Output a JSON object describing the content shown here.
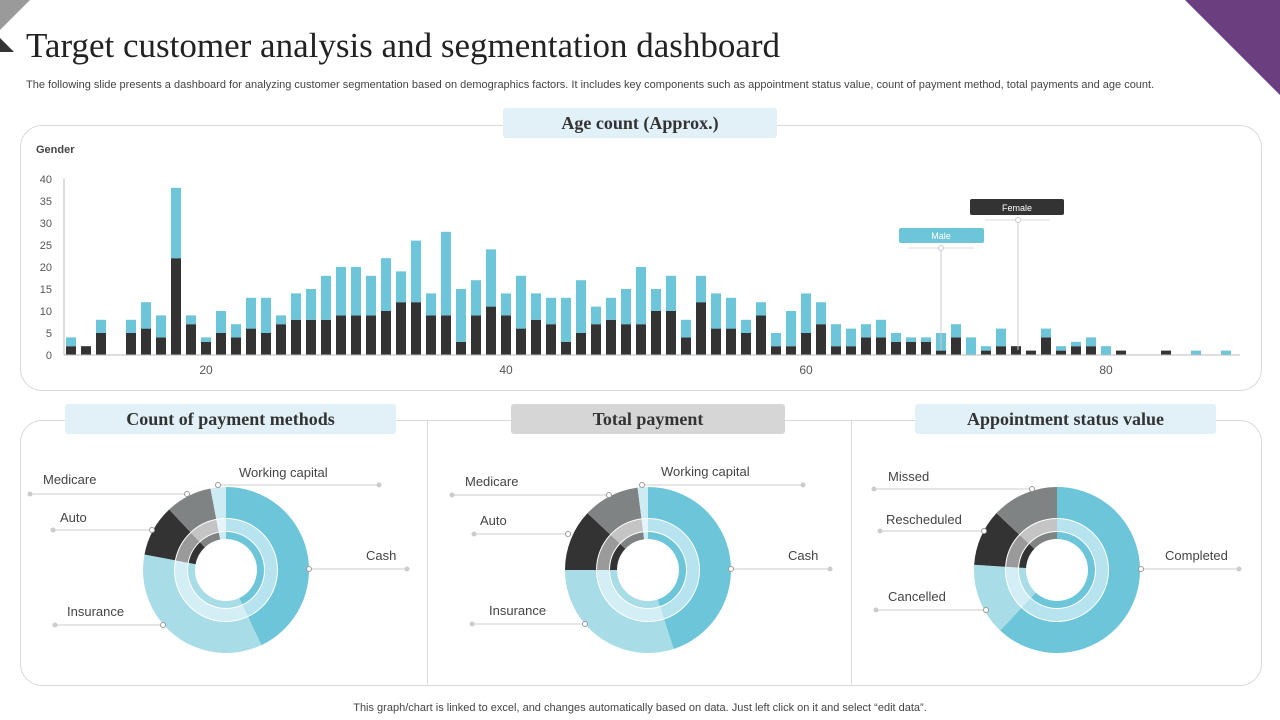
{
  "header": {
    "title": "Target customer analysis and segmentation dashboard",
    "subtitle": "The following slide presents a dashboard for analyzing customer segmentation based on demographics factors. It includes key components such as appointment status value, count of payment method, total payments and age count."
  },
  "footer": "This graph/chart is linked to excel, and changes automatically based on data. Just left click on it and select “edit data”.",
  "colors": {
    "dark": "#333333",
    "blue": "#6cc5d8",
    "light_blue": "#a8dde8",
    "gray": "#808383",
    "pale": "#cdebf2",
    "accent_purple": "#6b3f7f"
  },
  "chart_data": [
    {
      "type": "bar",
      "stacked": true,
      "title": "Age count (Approx.)",
      "legend_title": "Gender",
      "ylim": [
        0,
        40
      ],
      "yticks": [
        "0",
        "5",
        "10",
        "15",
        "20",
        "25",
        "30",
        "35",
        "40"
      ],
      "xticks": [
        "20",
        "40",
        "60",
        "80"
      ],
      "grid": false,
      "x": [
        11,
        12,
        13,
        14,
        15,
        16,
        17,
        18,
        19,
        20,
        21,
        22,
        23,
        24,
        25,
        26,
        27,
        28,
        29,
        30,
        31,
        32,
        33,
        34,
        35,
        36,
        37,
        38,
        39,
        40,
        41,
        42,
        43,
        44,
        45,
        46,
        47,
        48,
        49,
        50,
        51,
        52,
        53,
        54,
        55,
        56,
        57,
        58,
        59,
        60,
        61,
        62,
        63,
        64,
        65,
        66,
        67,
        68,
        69,
        70,
        71,
        72,
        73,
        74,
        75,
        76,
        77,
        78,
        79,
        80,
        81,
        82,
        83,
        84,
        85,
        86,
        87,
        88
      ],
      "series": [
        {
          "name": "Female",
          "color": "#333333",
          "values": [
            2,
            2,
            5,
            0,
            5,
            6,
            4,
            22,
            7,
            3,
            5,
            4,
            6,
            5,
            7,
            8,
            8,
            8,
            9,
            9,
            9,
            10,
            12,
            12,
            9,
            9,
            3,
            9,
            11,
            9,
            6,
            8,
            7,
            3,
            5,
            7,
            8,
            7,
            7,
            10,
            10,
            4,
            12,
            6,
            6,
            5,
            9,
            2,
            2,
            5,
            7,
            2,
            2,
            4,
            4,
            3,
            3,
            3,
            1,
            4,
            0,
            1,
            2,
            2,
            1,
            4,
            1,
            2,
            2,
            0,
            1,
            0,
            0,
            1,
            0,
            0,
            0,
            0
          ]
        },
        {
          "name": "Male",
          "color": "#6cc5d8",
          "values": [
            2,
            0,
            3,
            0,
            3,
            6,
            5,
            16,
            2,
            1,
            5,
            3,
            7,
            8,
            2,
            6,
            7,
            10,
            11,
            11,
            9,
            12,
            7,
            14,
            5,
            19,
            12,
            8,
            13,
            5,
            12,
            6,
            6,
            10,
            12,
            4,
            5,
            8,
            13,
            5,
            8,
            4,
            6,
            8,
            7,
            3,
            3,
            3,
            8,
            9,
            5,
            5,
            4,
            3,
            4,
            2,
            1,
            1,
            4,
            3,
            4,
            1,
            4,
            0,
            0,
            2,
            1,
            1,
            2,
            2,
            0,
            0,
            0,
            0,
            0,
            1,
            0,
            1
          ]
        }
      ]
    },
    {
      "type": "pie",
      "title": "Count of payment methods",
      "categories": [
        "Cash",
        "Insurance",
        "Auto",
        "Medicare",
        "Working capital"
      ],
      "values": [
        43,
        35,
        10,
        9,
        3
      ]
    },
    {
      "type": "pie",
      "title": "Total payment",
      "categories": [
        "Cash",
        "Insurance",
        "Auto",
        "Medicare",
        "Working capital"
      ],
      "values": [
        45,
        30,
        12,
        11,
        2
      ]
    },
    {
      "type": "pie",
      "title": "Appointment status value",
      "categories": [
        "Completed",
        "Cancelled",
        "Rescheduled",
        "Missed"
      ],
      "values": [
        62,
        14,
        11,
        13
      ]
    }
  ]
}
